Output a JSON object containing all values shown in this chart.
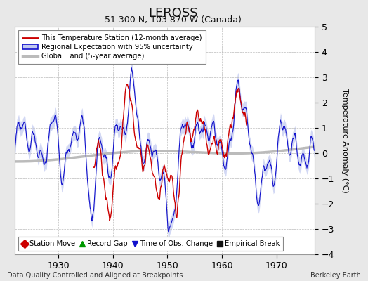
{
  "title": "LEROSS",
  "subtitle": "51.300 N, 103.870 W (Canada)",
  "ylabel": "Temperature Anomaly (°C)",
  "xlabel_note": "Data Quality Controlled and Aligned at Breakpoints",
  "credit": "Berkeley Earth",
  "ylim": [
    -4,
    5
  ],
  "xlim": [
    1922,
    1977
  ],
  "xticks": [
    1930,
    1940,
    1950,
    1960,
    1970
  ],
  "yticks": [
    -4,
    -3,
    -2,
    -1,
    0,
    1,
    2,
    3,
    4,
    5
  ],
  "bg_color": "#e8e8e8",
  "plot_bg_color": "#ffffff",
  "grid_color": "#bbbbbb",
  "red_color": "#cc0000",
  "blue_color": "#1111cc",
  "blue_fill_color": "#c0c8f0",
  "gray_color": "#bbbbbb",
  "title_fontsize": 13,
  "subtitle_fontsize": 9,
  "tick_fontsize": 9,
  "ylabel_fontsize": 8,
  "legend_fontsize": 7.5,
  "note_fontsize": 7,
  "seed": 12345
}
